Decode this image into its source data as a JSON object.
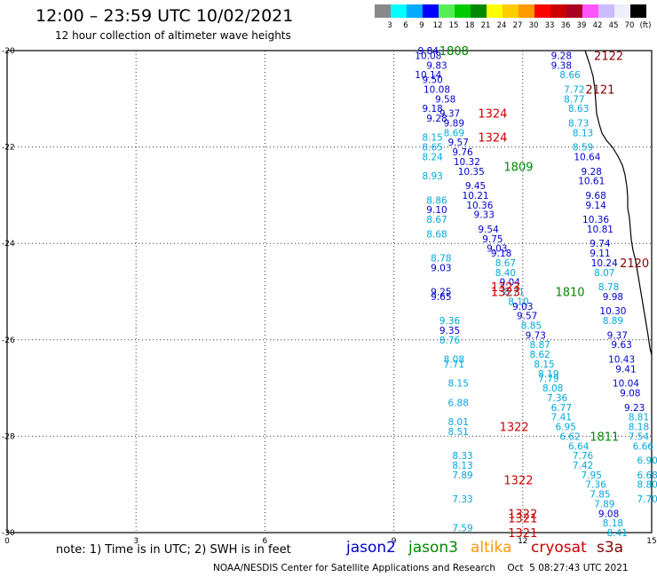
{
  "header": {
    "title": "12:00 – 23:59 UTC 10/02/2021",
    "subtitle": "12 hour collection of altimeter wave heights"
  },
  "color_scale": {
    "ticks": [
      "3",
      "6",
      "9",
      "12",
      "15",
      "18",
      "21",
      "24",
      "27",
      "30",
      "33",
      "36",
      "39",
      "42",
      "45",
      "70",
      "(ft)"
    ],
    "colors": [
      "#888888",
      "#00ffff",
      "#00aaff",
      "#0000ff",
      "#55ee55",
      "#00cc00",
      "#008800",
      "#ffff00",
      "#ffcc00",
      "#ff9900",
      "#ff0000",
      "#cc0000",
      "#aa0022",
      "#ff55ff",
      "#ccbbff",
      "#eeeeff",
      "#000000"
    ]
  },
  "axes": {
    "lon_ticks": [
      "0",
      "3",
      "6",
      "9",
      "12",
      "15"
    ],
    "lat_ticks": [
      "-20",
      "-22",
      "-24",
      "-26",
      "-28",
      "-30"
    ]
  },
  "colors": {
    "jason2": "#0000cc",
    "jason3": "#008800",
    "altika": "#ff9900",
    "cryosat": "#cc0000",
    "s3a": "#880000",
    "light": "#00a8dd",
    "coast": "#000000"
  },
  "labels": [
    {
      "text": "1808",
      "lon": 10.4,
      "lat": -20.0,
      "c": "jason3"
    },
    {
      "text": "2122",
      "lon": 14.0,
      "lat": -20.1,
      "c": "s3a"
    },
    {
      "text": "2121",
      "lon": 13.8,
      "lat": -20.8,
      "c": "s3a"
    },
    {
      "text": "1324",
      "lon": 11.3,
      "lat": -21.3,
      "c": "cryosat"
    },
    {
      "text": "1324",
      "lon": 11.3,
      "lat": -21.8,
      "c": "cryosat"
    },
    {
      "text": "1809",
      "lon": 11.9,
      "lat": -22.4,
      "c": "jason3"
    },
    {
      "text": "2120",
      "lon": 14.6,
      "lat": -24.4,
      "c": "s3a"
    },
    {
      "text": "1323",
      "lon": 11.6,
      "lat": -24.9,
      "c": "cryosat"
    },
    {
      "text": "1323",
      "lon": 11.6,
      "lat": -25.0,
      "c": "cryosat"
    },
    {
      "text": "1810",
      "lon": 13.1,
      "lat": -25.0,
      "c": "jason3"
    },
    {
      "text": "1322",
      "lon": 11.8,
      "lat": -27.8,
      "c": "cryosat"
    },
    {
      "text": "1811",
      "lon": 13.9,
      "lat": -28.0,
      "c": "jason3"
    },
    {
      "text": "1322",
      "lon": 11.9,
      "lat": -28.9,
      "c": "cryosat"
    },
    {
      "text": "1322",
      "lon": 12.0,
      "lat": -29.6,
      "c": "cryosat"
    },
    {
      "text": "1321",
      "lon": 12.0,
      "lat": -29.7,
      "c": "cryosat"
    },
    {
      "text": "1321",
      "lon": 12.0,
      "lat": -30.0,
      "c": "cryosat"
    }
  ],
  "tracks": [
    {
      "values": [
        "9.84",
        "10.08",
        "9.83",
        "10.14",
        "9.50",
        "10.08",
        "9.58",
        "9.18",
        "9.37",
        "9.28",
        "9.89",
        "8.69",
        "8.15",
        "9.57",
        "8.65",
        "9.76",
        "8.24",
        "10.32",
        "10.35",
        "8.93",
        "9.45",
        "10.21",
        "8.86",
        "10.36",
        "9.10",
        "9.33",
        "8.67",
        "9.54",
        "8.68",
        "9.75",
        "9.03",
        "9.18",
        "8.78",
        "8.67",
        "9.03",
        "8.40",
        "9.04",
        "9.25",
        "8.71",
        "9.65",
        "8.10",
        "9.03",
        "9.57",
        "9.36",
        "8.85",
        "9.35",
        "9.73",
        "8.76",
        "8.87",
        "8.62",
        "8.08",
        "8.15",
        "7.71",
        "8.19",
        "7.79",
        "8.15",
        "8.08",
        "7.36",
        "6.88",
        "6.77",
        "7.41",
        "8.01",
        "6.95",
        "8.51",
        "6.62",
        "6.64",
        "7.76",
        "8.33",
        "7.42",
        "8.13",
        "7.95",
        "7.89",
        "7.36",
        "7.85",
        "7.33",
        "7.89",
        "9.08",
        "8.18",
        "7.59",
        "8.41"
      ],
      "c": [
        "jason2",
        "jason2",
        "jason2",
        "jason2",
        "jason2",
        "jason2",
        "jason2",
        "jason2",
        "jason2",
        "jason2",
        "jason2",
        "light",
        "light",
        "jason2",
        "light",
        "jason2",
        "light",
        "jason2",
        "jason2",
        "light",
        "jason2",
        "jason2",
        "light",
        "jason2",
        "jason2",
        "jason2",
        "light",
        "jason2",
        "light",
        "jason2",
        "jason2",
        "jason2",
        "light",
        "light",
        "jason2",
        "light",
        "jason2",
        "jason2",
        "light",
        "jason2",
        "light",
        "jason2",
        "jason2",
        "light",
        "light",
        "jason2",
        "jason2",
        "light",
        "light",
        "light",
        "light",
        "light",
        "light",
        "light",
        "light",
        "light",
        "light",
        "light",
        "light",
        "light",
        "light",
        "light",
        "light",
        "light",
        "light",
        "light",
        "light",
        "light",
        "light",
        "light",
        "light",
        "light",
        "light",
        "light",
        "light",
        "light",
        "jason2",
        "light",
        "light",
        "light"
      ],
      "lon": [
        9.8,
        9.8,
        10.0,
        9.8,
        9.9,
        10.0,
        10.2,
        9.9,
        10.3,
        10.0,
        10.4,
        10.4,
        9.9,
        10.5,
        9.9,
        10.6,
        9.9,
        10.7,
        10.8,
        9.9,
        10.9,
        10.9,
        10.0,
        11.0,
        10.0,
        11.1,
        10.0,
        11.2,
        10.0,
        11.3,
        11.4,
        11.5,
        10.1,
        11.6,
        10.1,
        11.6,
        11.7,
        10.1,
        11.8,
        10.1,
        11.9,
        12.0,
        12.1,
        10.3,
        12.2,
        10.3,
        12.3,
        10.3,
        12.4,
        12.4,
        10.4,
        12.5,
        10.4,
        12.6,
        12.6,
        10.5,
        12.7,
        12.8,
        10.5,
        12.9,
        12.9,
        10.5,
        13.0,
        10.5,
        13.1,
        13.3,
        13.4,
        10.6,
        13.4,
        10.6,
        13.6,
        10.6,
        13.7,
        13.8,
        10.6,
        13.9,
        14.0,
        14.1,
        10.6,
        14.2
      ],
      "lat": [
        -20.0,
        -20.1,
        -20.3,
        -20.5,
        -20.6,
        -20.8,
        -21.0,
        -21.2,
        -21.3,
        -21.4,
        -21.5,
        -21.7,
        -21.8,
        -21.9,
        -22.0,
        -22.1,
        -22.2,
        -22.3,
        -22.5,
        -22.6,
        -22.8,
        -23.0,
        -23.1,
        -23.2,
        -23.3,
        -23.4,
        -23.5,
        -23.7,
        -23.8,
        -23.9,
        -24.1,
        -24.2,
        -24.3,
        -24.4,
        -24.5,
        -24.6,
        -24.8,
        -25.0,
        -25.0,
        -25.1,
        -25.2,
        -25.3,
        -25.5,
        -25.6,
        -25.7,
        -25.8,
        -25.9,
        -26.0,
        -26.1,
        -26.3,
        -26.4,
        -26.5,
        -26.5,
        -26.7,
        -26.8,
        -26.9,
        -27.0,
        -27.2,
        -27.3,
        -27.4,
        -27.6,
        -27.7,
        -27.8,
        -27.9,
        -28.0,
        -28.2,
        -28.4,
        -28.4,
        -28.6,
        -28.6,
        -28.8,
        -28.8,
        -29.0,
        -29.2,
        -29.3,
        -29.4,
        -29.6,
        -29.8,
        -29.9,
        -30.0
      ]
    },
    {
      "values": [
        "9.28",
        "9.38",
        "8.66",
        "7.72",
        "8.77",
        "8.63",
        "8.73",
        "8.13",
        "8.59",
        "10.64",
        "9.28",
        "10.61",
        "9.68",
        "9.14",
        "10.36",
        "10.81",
        "9.74",
        "9.11",
        "10.24",
        "8.07",
        "8.78",
        "9.98",
        "10.30",
        "8.89",
        "9.37",
        "9.63",
        "10.43",
        "9.41",
        "10.04",
        "9.08",
        "9.23",
        "8.81",
        "8.18",
        "7.54",
        "6.66",
        "6.90",
        "6.68",
        "8.80",
        "7.70"
      ],
      "c": [
        "jason2",
        "jason2",
        "light",
        "light",
        "light",
        "light",
        "light",
        "light",
        "light",
        "jason2",
        "jason2",
        "jason2",
        "jason2",
        "jason2",
        "jason2",
        "jason2",
        "jason2",
        "jason2",
        "jason2",
        "light",
        "light",
        "jason2",
        "jason2",
        "light",
        "jason2",
        "jason2",
        "jason2",
        "jason2",
        "jason2",
        "jason2",
        "jason2",
        "light",
        "light",
        "light",
        "light",
        "light",
        "light",
        "light",
        "light"
      ],
      "lon": [
        12.9,
        12.9,
        13.1,
        13.2,
        13.2,
        13.3,
        13.3,
        13.4,
        13.4,
        13.5,
        13.6,
        13.6,
        13.7,
        13.7,
        13.7,
        13.8,
        13.8,
        13.8,
        13.9,
        13.9,
        14.0,
        14.1,
        14.1,
        14.1,
        14.2,
        14.3,
        14.3,
        14.4,
        14.4,
        14.5,
        14.6,
        14.7,
        14.7,
        14.7,
        14.8,
        14.9,
        14.9,
        14.9,
        14.9
      ],
      "lat": [
        -20.1,
        -20.3,
        -20.5,
        -20.8,
        -21.0,
        -21.2,
        -21.5,
        -21.7,
        -22.0,
        -22.2,
        -22.5,
        -22.7,
        -23.0,
        -23.2,
        -23.5,
        -23.7,
        -24.0,
        -24.2,
        -24.4,
        -24.6,
        -24.9,
        -25.1,
        -25.4,
        -25.6,
        -25.9,
        -26.1,
        -26.4,
        -26.6,
        -26.9,
        -27.1,
        -27.4,
        -27.6,
        -27.8,
        -28.0,
        -28.2,
        -28.5,
        -28.8,
        -29.0,
        -29.3
      ]
    }
  ],
  "legend": [
    {
      "name": "jason2",
      "c": "jason2"
    },
    {
      "name": "jason3",
      "c": "jason3"
    },
    {
      "name": "altika",
      "c": "altika"
    },
    {
      "name": "cryosat",
      "c": "cryosat"
    },
    {
      "name": "s3a",
      "c": "s3a"
    }
  ],
  "note": "note:  1) Time is in UTC;  2) SWH is in feet",
  "credit": "NOAA/NESDIS Center for Satellite Applications and Research    Oct  5 08:27:43 UTC 2021"
}
